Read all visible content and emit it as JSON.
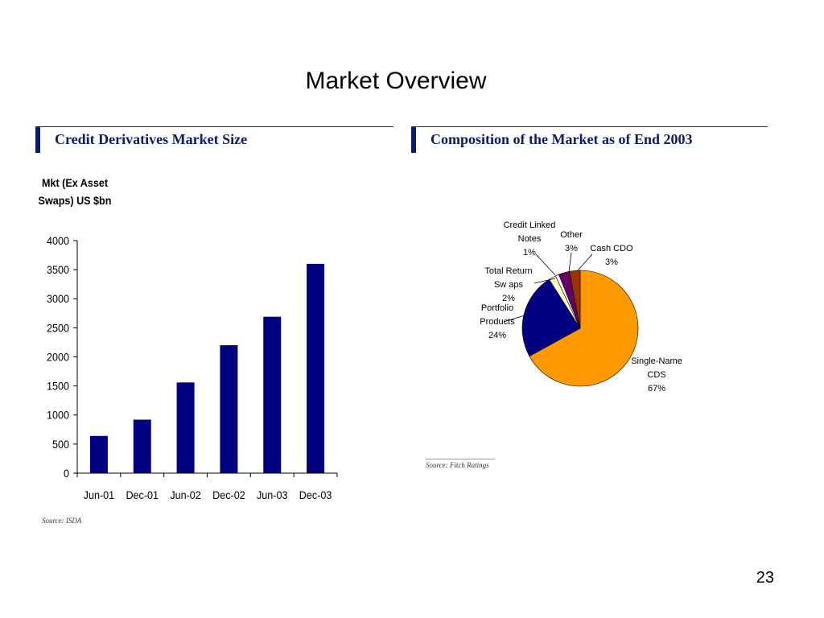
{
  "slide": {
    "title": "Market Overview",
    "page_number": "23"
  },
  "left_section": {
    "heading": "Credit Derivatives Market Size",
    "source": "Source:  ISDA"
  },
  "right_section": {
    "heading": "Composition of the Market as of End 2003",
    "source": "Source:  Fitch Ratings"
  },
  "colors": {
    "heading_navy": "#0b1a6b",
    "bar": "#000080"
  },
  "chart_data": [
    {
      "type": "bar",
      "title": "",
      "ylabel_lines": [
        "Mkt (Ex Asset",
        "Swaps) US $bn"
      ],
      "xlabel": "",
      "categories": [
        "Jun-01",
        "Dec-01",
        "Jun-02",
        "Dec-02",
        "Jun-03",
        "Dec-03"
      ],
      "values": [
        640,
        920,
        1560,
        2200,
        2690,
        3600
      ],
      "ylim": [
        0,
        4000
      ],
      "yticks": [
        "0",
        "500",
        "1000",
        "1500",
        "2000",
        "2500",
        "3000",
        "3500",
        "4000"
      ],
      "color": "#000080",
      "grid": false
    },
    {
      "type": "pie",
      "title": "",
      "slices": [
        {
          "label_lines": [
            "Single-Name",
            "CDS",
            "67%"
          ],
          "value": 67,
          "color": "#ff9900"
        },
        {
          "label_lines": [
            "Portfolio",
            "Products",
            "24%"
          ],
          "value": 24,
          "color": "#000080"
        },
        {
          "label_lines": [
            "Total Return",
            "Sw aps",
            "2%"
          ],
          "value": 2,
          "color": "#ffffcc"
        },
        {
          "label_lines": [
            "Credit Linked",
            "Notes",
            "1%"
          ],
          "value": 1,
          "color": "#ffffff"
        },
        {
          "label_lines": [
            "Other",
            "3%"
          ],
          "value": 3,
          "color": "#660066"
        },
        {
          "label_lines": [
            "Cash CDO",
            "3%"
          ],
          "value": 3,
          "color": "#993300"
        }
      ]
    }
  ]
}
